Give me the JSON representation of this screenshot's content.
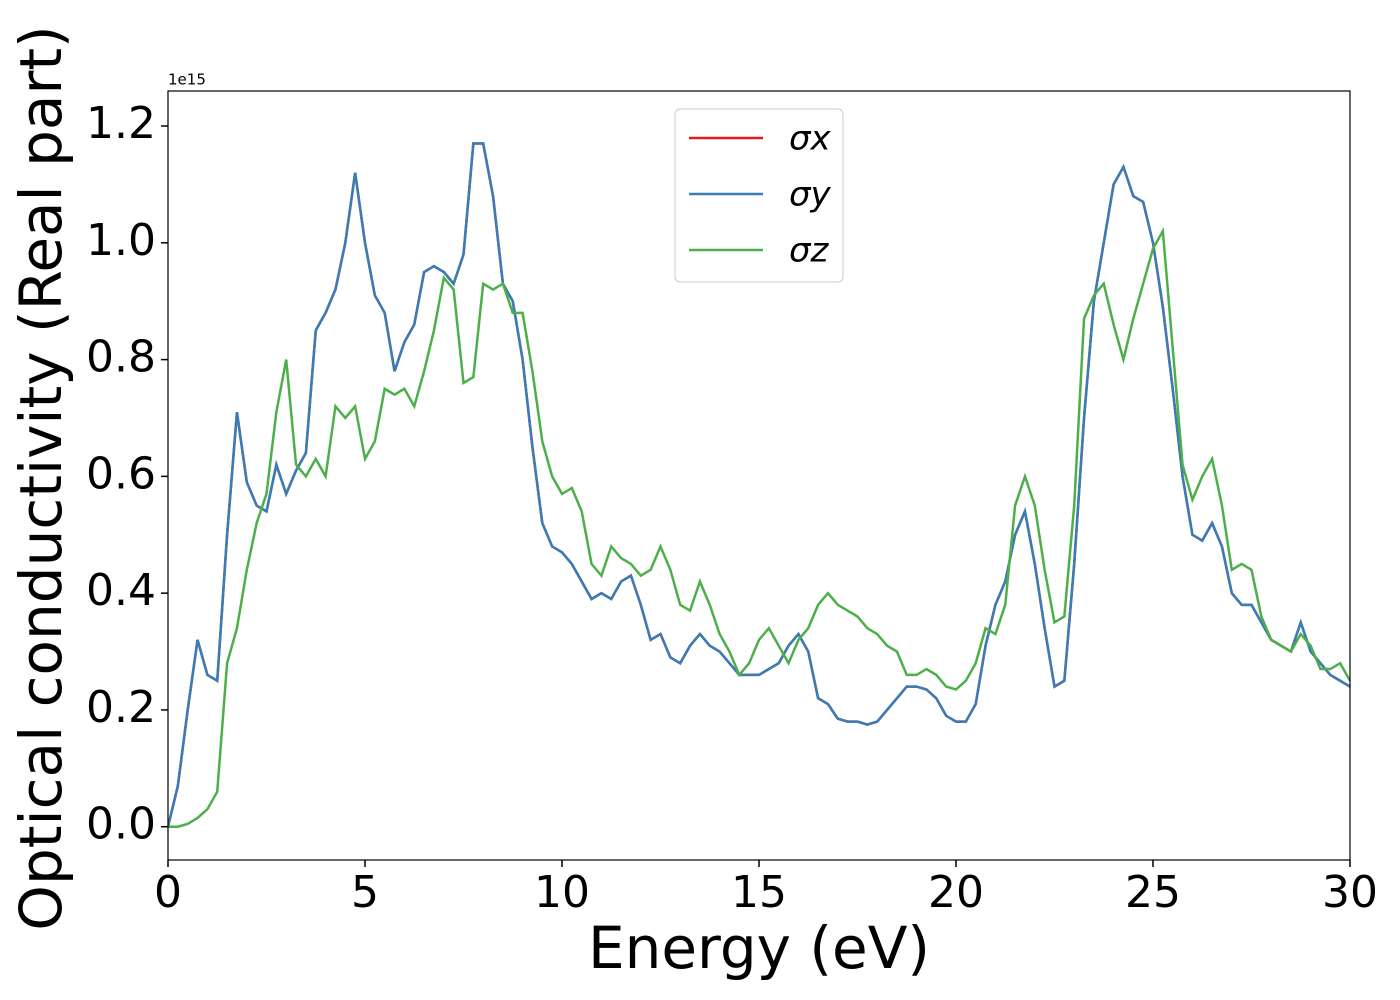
{
  "chart_data": {
    "type": "line",
    "xlabel": "Energy (eV)",
    "ylabel": "Optical conductivity (Real part)",
    "y_offset_label": "1e15",
    "x": [
      0,
      0.25,
      0.5,
      0.75,
      1,
      1.25,
      1.5,
      1.75,
      2,
      2.25,
      2.5,
      2.75,
      3,
      3.25,
      3.5,
      3.75,
      4,
      4.25,
      4.5,
      4.75,
      5,
      5.25,
      5.5,
      5.75,
      6,
      6.25,
      6.5,
      6.75,
      7,
      7.25,
      7.5,
      7.75,
      8,
      8.25,
      8.5,
      8.75,
      9,
      9.25,
      9.5,
      9.75,
      10,
      10.25,
      10.5,
      10.75,
      11,
      11.25,
      11.5,
      11.75,
      12,
      12.25,
      12.5,
      12.75,
      13,
      13.25,
      13.5,
      13.75,
      14,
      14.25,
      14.5,
      14.75,
      15,
      15.25,
      15.5,
      15.75,
      16,
      16.25,
      16.5,
      16.75,
      17,
      17.25,
      17.5,
      17.75,
      18,
      18.25,
      18.5,
      18.75,
      19,
      19.25,
      19.5,
      19.75,
      20,
      20.25,
      20.5,
      20.75,
      21,
      21.25,
      21.5,
      21.75,
      22,
      22.25,
      22.5,
      22.75,
      23,
      23.25,
      23.5,
      23.75,
      24,
      24.25,
      24.5,
      24.75,
      25,
      25.25,
      25.5,
      25.75,
      26,
      26.25,
      26.5,
      26.75,
      27,
      27.25,
      27.5,
      27.75,
      28,
      28.25,
      28.5,
      28.75,
      29,
      29.25,
      29.5,
      29.75,
      30
    ],
    "series": [
      {
        "name": "σx",
        "color": "#e41a1c",
        "values": [
          0,
          0.07,
          0.2,
          0.32,
          0.26,
          0.25,
          0.5,
          0.71,
          0.59,
          0.55,
          0.54,
          0.62,
          0.57,
          0.61,
          0.64,
          0.85,
          0.88,
          0.92,
          1.0,
          1.12,
          1.0,
          0.91,
          0.88,
          0.78,
          0.83,
          0.86,
          0.95,
          0.96,
          0.95,
          0.93,
          0.98,
          1.17,
          1.17,
          1.08,
          0.93,
          0.9,
          0.8,
          0.65,
          0.52,
          0.48,
          0.47,
          0.45,
          0.42,
          0.39,
          0.4,
          0.39,
          0.42,
          0.43,
          0.38,
          0.32,
          0.33,
          0.29,
          0.28,
          0.31,
          0.33,
          0.31,
          0.3,
          0.28,
          0.26,
          0.26,
          0.26,
          0.27,
          0.28,
          0.31,
          0.33,
          0.3,
          0.22,
          0.21,
          0.185,
          0.18,
          0.18,
          0.175,
          0.18,
          0.2,
          0.22,
          0.24,
          0.24,
          0.235,
          0.22,
          0.19,
          0.18,
          0.18,
          0.21,
          0.31,
          0.38,
          0.42,
          0.5,
          0.54,
          0.45,
          0.34,
          0.24,
          0.25,
          0.45,
          0.7,
          0.9,
          1.0,
          1.1,
          1.13,
          1.08,
          1.07,
          1.0,
          0.89,
          0.75,
          0.6,
          0.5,
          0.49,
          0.52,
          0.48,
          0.4,
          0.38,
          0.38,
          0.35,
          0.32,
          0.31,
          0.3,
          0.35,
          0.3,
          0.28,
          0.26,
          0.25,
          0.24
        ]
      },
      {
        "name": "σy",
        "color": "#377eb8",
        "values": [
          0,
          0.07,
          0.2,
          0.32,
          0.26,
          0.25,
          0.5,
          0.71,
          0.59,
          0.55,
          0.54,
          0.62,
          0.57,
          0.61,
          0.64,
          0.85,
          0.88,
          0.92,
          1.0,
          1.12,
          1.0,
          0.91,
          0.88,
          0.78,
          0.83,
          0.86,
          0.95,
          0.96,
          0.95,
          0.93,
          0.98,
          1.17,
          1.17,
          1.08,
          0.93,
          0.9,
          0.8,
          0.65,
          0.52,
          0.48,
          0.47,
          0.45,
          0.42,
          0.39,
          0.4,
          0.39,
          0.42,
          0.43,
          0.38,
          0.32,
          0.33,
          0.29,
          0.28,
          0.31,
          0.33,
          0.31,
          0.3,
          0.28,
          0.26,
          0.26,
          0.26,
          0.27,
          0.28,
          0.31,
          0.33,
          0.3,
          0.22,
          0.21,
          0.185,
          0.18,
          0.18,
          0.175,
          0.18,
          0.2,
          0.22,
          0.24,
          0.24,
          0.235,
          0.22,
          0.19,
          0.18,
          0.18,
          0.21,
          0.31,
          0.38,
          0.42,
          0.5,
          0.54,
          0.45,
          0.34,
          0.24,
          0.25,
          0.45,
          0.7,
          0.9,
          1.0,
          1.1,
          1.13,
          1.08,
          1.07,
          1.0,
          0.89,
          0.75,
          0.6,
          0.5,
          0.49,
          0.52,
          0.48,
          0.4,
          0.38,
          0.38,
          0.35,
          0.32,
          0.31,
          0.3,
          0.35,
          0.3,
          0.28,
          0.26,
          0.25,
          0.24
        ]
      },
      {
        "name": "σz",
        "color": "#4daf4a",
        "values": [
          0,
          0,
          0.005,
          0.015,
          0.03,
          0.06,
          0.28,
          0.34,
          0.44,
          0.52,
          0.57,
          0.71,
          0.8,
          0.62,
          0.6,
          0.63,
          0.6,
          0.72,
          0.7,
          0.72,
          0.63,
          0.66,
          0.75,
          0.74,
          0.75,
          0.72,
          0.78,
          0.85,
          0.94,
          0.92,
          0.76,
          0.77,
          0.93,
          0.92,
          0.93,
          0.88,
          0.88,
          0.78,
          0.66,
          0.6,
          0.57,
          0.58,
          0.54,
          0.45,
          0.43,
          0.48,
          0.46,
          0.45,
          0.43,
          0.44,
          0.48,
          0.44,
          0.38,
          0.37,
          0.42,
          0.38,
          0.33,
          0.3,
          0.26,
          0.28,
          0.32,
          0.34,
          0.31,
          0.28,
          0.32,
          0.34,
          0.38,
          0.4,
          0.38,
          0.37,
          0.36,
          0.34,
          0.33,
          0.31,
          0.3,
          0.26,
          0.26,
          0.27,
          0.26,
          0.24,
          0.235,
          0.25,
          0.28,
          0.34,
          0.33,
          0.38,
          0.55,
          0.6,
          0.55,
          0.44,
          0.35,
          0.36,
          0.55,
          0.87,
          0.91,
          0.93,
          0.86,
          0.8,
          0.87,
          0.93,
          0.99,
          1.02,
          0.82,
          0.62,
          0.56,
          0.6,
          0.63,
          0.55,
          0.44,
          0.45,
          0.44,
          0.36,
          0.32,
          0.31,
          0.3,
          0.33,
          0.31,
          0.27,
          0.27,
          0.28,
          0.25
        ]
      }
    ],
    "xlim": [
      0,
      30
    ],
    "xticks": [
      0,
      5,
      10,
      15,
      20,
      25,
      30
    ],
    "ylim": [
      -0.057,
      1.26
    ],
    "yticks": [
      {
        "value": 0,
        "label": "0.0"
      },
      0.2,
      0.4,
      0.6,
      0.8,
      {
        "value": 1,
        "label": "1.0"
      },
      1.2
    ],
    "legend": "upper center",
    "grid": false
  }
}
